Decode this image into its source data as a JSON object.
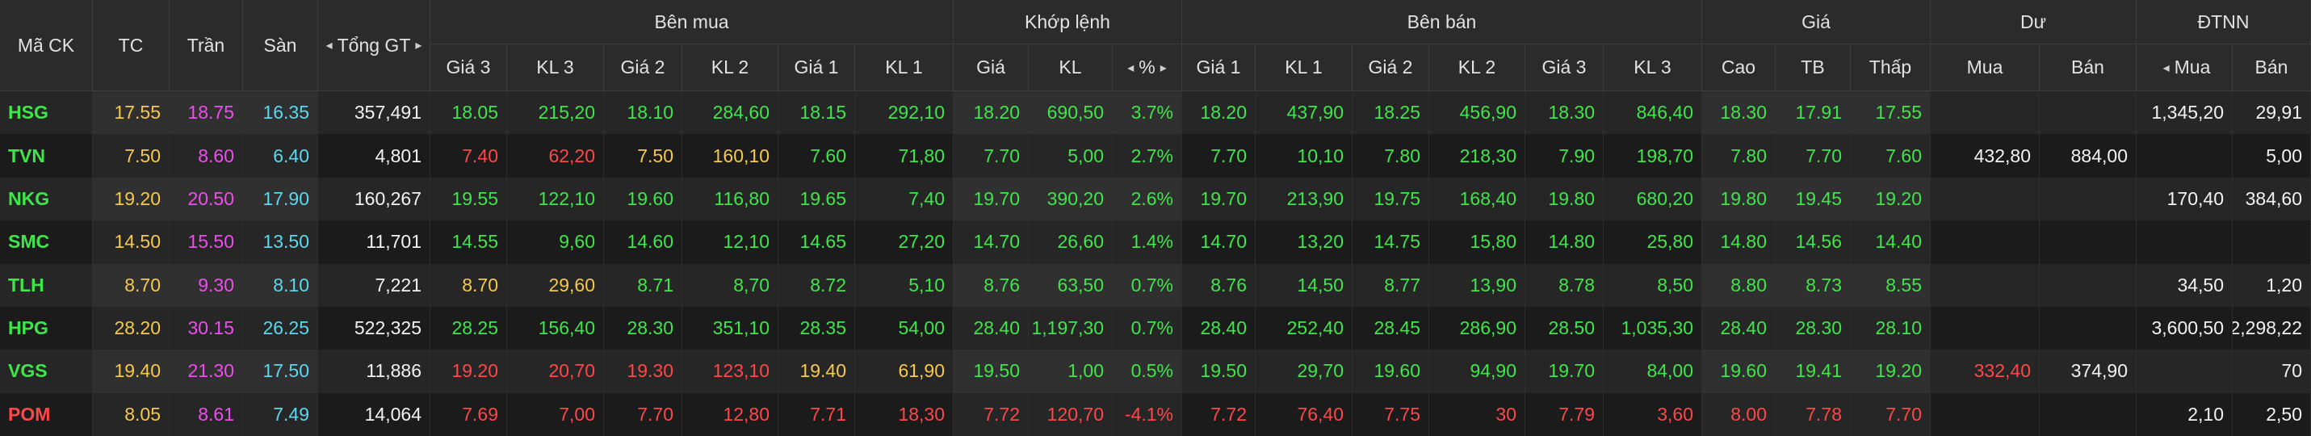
{
  "header": {
    "fixed": [
      "Mã CK",
      "TC",
      "Trần",
      "Sàn",
      "Tổng GT"
    ],
    "groups": [
      {
        "title": "Bên mua",
        "columns": [
          "Giá 3",
          "KL 3",
          "Giá 2",
          "KL 2",
          "Giá 1",
          "KL 1"
        ]
      },
      {
        "title": "Khớp lệnh",
        "columns": [
          "Giá",
          "KL",
          "%"
        ]
      },
      {
        "title": "Bên bán",
        "columns": [
          "Giá 1",
          "KL 1",
          "Giá 2",
          "KL 2",
          "Giá 3",
          "KL 3"
        ]
      },
      {
        "title": "Giá",
        "columns": [
          "Cao",
          "TB",
          "Thấp"
        ]
      },
      {
        "title": "Dư",
        "columns": [
          "Mua",
          "Bán"
        ]
      },
      {
        "title": "ĐTNN",
        "columns": [
          "Mua",
          "Bán"
        ]
      }
    ]
  },
  "palette": {
    "g": "#3ee64a",
    "r": "#ff4747",
    "y": "#f7c948",
    "p": "#f04cf0",
    "c": "#5ad8ef",
    "w": "#f2f2f2"
  },
  "table": {
    "rows": [
      {
        "cells": [
          "HSG",
          "17.55",
          "18.75",
          "16.35",
          "357,491",
          "18.05",
          "215,20",
          "18.10",
          "284,60",
          "18.15",
          "292,10",
          "18.20",
          "690,50",
          "3.7%",
          "18.20",
          "437,90",
          "18.25",
          "456,90",
          "18.30",
          "846,40",
          "18.30",
          "17.91",
          "17.55",
          "",
          "",
          "1,345,20",
          "29,91"
        ],
        "tones": "gypcwggggggggggggggggggyywww"
      },
      {
        "cells": [
          "TVN",
          "7.50",
          "8.60",
          "6.40",
          "4,801",
          "7.40",
          "62,20",
          "7.50",
          "160,10",
          "7.60",
          "71,80",
          "7.70",
          "5,00",
          "2.7%",
          "7.70",
          "10,10",
          "7.80",
          "218,30",
          "7.90",
          "198,70",
          "7.80",
          "7.70",
          "7.60",
          "432,80",
          "884,00",
          "",
          "5,00"
        ],
        "tones": "gypcwrryyggggggggggggggwwww"
      },
      {
        "cells": [
          "NKG",
          "19.20",
          "20.50",
          "17.90",
          "160,267",
          "19.55",
          "122,10",
          "19.60",
          "116,80",
          "19.65",
          "7,40",
          "19.70",
          "390,20",
          "2.6%",
          "19.70",
          "213,90",
          "19.75",
          "168,40",
          "19.80",
          "680,20",
          "19.80",
          "19.45",
          "19.20",
          "",
          "",
          "170,40",
          "384,60"
        ],
        "tones": "gypcwggggggggggggggggggywwww"
      },
      {
        "cells": [
          "SMC",
          "14.50",
          "15.50",
          "13.50",
          "11,701",
          "14.55",
          "9,60",
          "14.60",
          "12,10",
          "14.65",
          "27,20",
          "14.70",
          "26,60",
          "1.4%",
          "14.70",
          "13,20",
          "14.75",
          "15,80",
          "14.80",
          "25,80",
          "14.80",
          "14.56",
          "14.40",
          "",
          "",
          "",
          ""
        ],
        "tones": "gypcwggggggggggggggggggrwwww"
      },
      {
        "cells": [
          "TLH",
          "8.70",
          "9.30",
          "8.10",
          "7,221",
          "8.70",
          "29,60",
          "8.71",
          "8,70",
          "8.72",
          "5,10",
          "8.76",
          "63,50",
          "0.7%",
          "8.76",
          "14,50",
          "8.77",
          "13,90",
          "8.78",
          "8,50",
          "8.80",
          "8.73",
          "8.55",
          "",
          "",
          "34,50",
          "1,20"
        ],
        "tones": "gypcwyyggggggggggggggggrwwww"
      },
      {
        "cells": [
          "HPG",
          "28.20",
          "30.15",
          "26.25",
          "522,325",
          "28.25",
          "156,40",
          "28.30",
          "351,10",
          "28.35",
          "54,00",
          "28.40",
          "1,197,30",
          "0.7%",
          "28.40",
          "252,40",
          "28.45",
          "286,90",
          "28.50",
          "1,035,30",
          "28.40",
          "28.30",
          "28.10",
          "",
          "",
          "3,600,50",
          "2,298,22"
        ],
        "tones": "gypcwggggggggggggggggggrwwww"
      },
      {
        "cells": [
          "VGS",
          "19.40",
          "21.30",
          "17.50",
          "11,886",
          "19.20",
          "20,70",
          "19.30",
          "123,10",
          "19.40",
          "61,90",
          "19.50",
          "1,00",
          "0.5%",
          "19.50",
          "29,70",
          "19.60",
          "94,90",
          "19.70",
          "84,00",
          "19.60",
          "19.41",
          "19.20",
          "332,40",
          "374,90",
          "",
          "70"
        ],
        "tones": "gypcwrrrryyggggggggggggrwwww"
      },
      {
        "cells": [
          "POM",
          "8.05",
          "8.61",
          "7.49",
          "14,064",
          "7.69",
          "7,00",
          "7.70",
          "12,80",
          "7.71",
          "18,30",
          "7.72",
          "120,70",
          "-4.1%",
          "7.72",
          "76,40",
          "7.75",
          "30",
          "7.79",
          "3,60",
          "8.00",
          "7.78",
          "7.70",
          "",
          "",
          "2,10",
          "2,50"
        ],
        "tones": "rypcwrrrrrrrrrrrrrrrrrrrwwww"
      }
    ]
  }
}
